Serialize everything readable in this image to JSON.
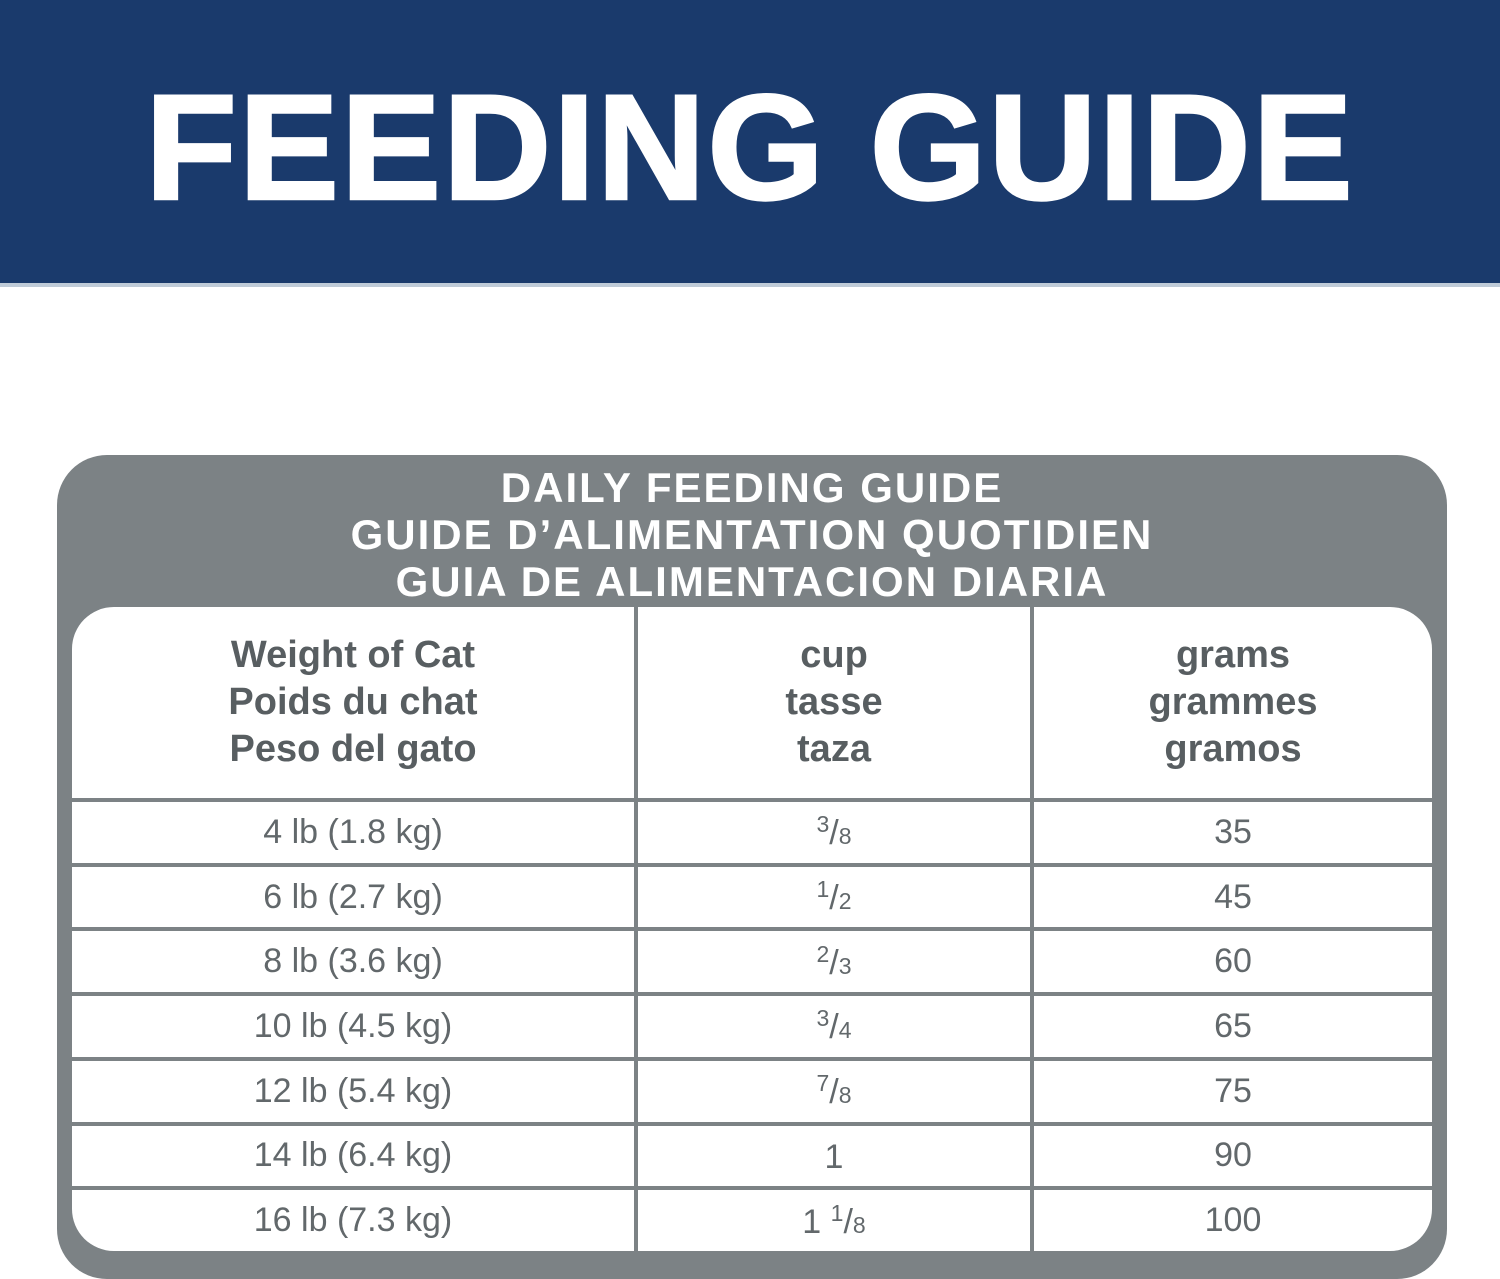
{
  "banner": {
    "title": "FEEDING GUIDE"
  },
  "colors": {
    "banner_bg": "#1a3a6c",
    "banner_text": "#ffffff",
    "banner_underline": "#bfcbd8",
    "table_frame_gray": "#7c8285",
    "table_title_text": "#ffffff",
    "header_text_gray": "#585e61",
    "cell_text_gray": "#62686b"
  },
  "feeding_table": {
    "title_lines": [
      "DAILY FEEDING GUIDE",
      "GUIDE D’ALIMENTATION QUOTIDIEN",
      "GUIA DE ALIMENTACION DIARIA"
    ],
    "column_headers": [
      {
        "lines": [
          "Weight of Cat",
          "Poids du chat",
          "Peso del gato"
        ]
      },
      {
        "lines": [
          "cup",
          "tasse",
          "taza"
        ]
      },
      {
        "lines": [
          "grams",
          "grammes",
          "gramos"
        ]
      }
    ],
    "rows": [
      {
        "weight": "4 lb (1.8 kg)",
        "cup_pre": "",
        "cup_num": "3",
        "cup_slash": "/",
        "cup_den": "8",
        "grams": "35"
      },
      {
        "weight": "6 lb (2.7 kg)",
        "cup_pre": "",
        "cup_num": "1",
        "cup_slash": "/",
        "cup_den": "2",
        "grams": "45"
      },
      {
        "weight": "8 lb (3.6 kg)",
        "cup_pre": "",
        "cup_num": "2",
        "cup_slash": "/",
        "cup_den": "3",
        "grams": "60"
      },
      {
        "weight": "10 lb (4.5 kg)",
        "cup_pre": "",
        "cup_num": "3",
        "cup_slash": "/",
        "cup_den": "4",
        "grams": "65"
      },
      {
        "weight": "12 lb (5.4 kg)",
        "cup_pre": "",
        "cup_num": "7",
        "cup_slash": "/",
        "cup_den": "8",
        "grams": "75"
      },
      {
        "weight": "14 lb (6.4 kg)",
        "cup_pre": "1",
        "cup_num": "",
        "cup_slash": "",
        "cup_den": "",
        "grams": "90"
      },
      {
        "weight": "16 lb (7.3 kg)",
        "cup_pre": "1 ",
        "cup_num": "1",
        "cup_slash": "/",
        "cup_den": "8",
        "grams": "100"
      }
    ]
  }
}
